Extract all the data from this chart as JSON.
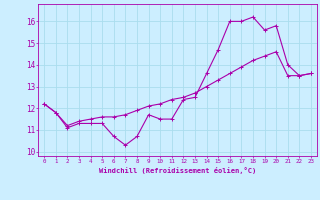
{
  "xlabel": "Windchill (Refroidissement éolien,°C)",
  "xlim": [
    -0.5,
    23.5
  ],
  "ylim": [
    9.8,
    16.8
  ],
  "yticks": [
    10,
    11,
    12,
    13,
    14,
    15,
    16
  ],
  "xticks": [
    0,
    1,
    2,
    3,
    4,
    5,
    6,
    7,
    8,
    9,
    10,
    11,
    12,
    13,
    14,
    15,
    16,
    17,
    18,
    19,
    20,
    21,
    22,
    23
  ],
  "bg_color": "#cceeff",
  "grid_color": "#aaddee",
  "line_color": "#aa00aa",
  "line1_y": [
    12.2,
    11.8,
    11.1,
    11.3,
    11.3,
    11.3,
    10.7,
    10.3,
    10.7,
    11.7,
    11.5,
    11.5,
    12.4,
    12.5,
    13.6,
    14.7,
    16.0,
    16.0,
    16.2,
    15.6,
    15.8,
    14.0,
    13.5,
    13.6
  ],
  "line2_y": [
    12.2,
    11.8,
    11.2,
    11.4,
    11.5,
    11.6,
    11.6,
    11.7,
    11.9,
    12.1,
    12.2,
    12.4,
    12.5,
    12.7,
    13.0,
    13.3,
    13.6,
    13.9,
    14.2,
    14.4,
    14.6,
    13.5,
    13.5,
    13.6
  ]
}
